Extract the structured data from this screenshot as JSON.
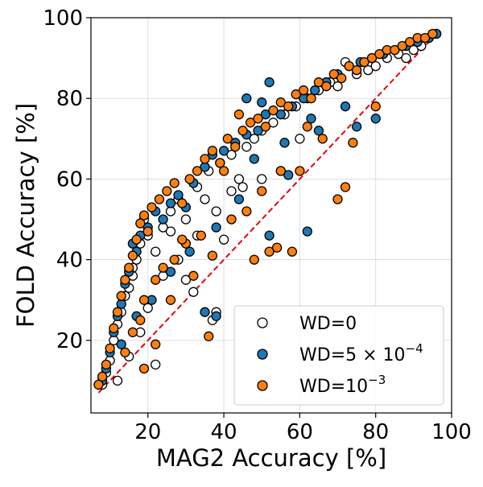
{
  "chart_data": {
    "type": "scatter",
    "xlabel": "MAG2 Accuracy [%]",
    "ylabel": "FOLD Accuracy [%]",
    "xlim": [
      5,
      100
    ],
    "ylim": [
      2,
      100
    ],
    "xticks": [
      20,
      40,
      60,
      80,
      100
    ],
    "yticks": [
      20,
      40,
      60,
      80,
      100
    ],
    "xtick_labels": [
      "20",
      "40",
      "60",
      "80",
      "100"
    ],
    "ytick_labels": [
      "20",
      "40",
      "60",
      "80",
      "100"
    ],
    "grid": true,
    "reference_line": {
      "style": "dashed",
      "color": "#e8000b",
      "x": [
        7,
        96
      ],
      "y": [
        7,
        96
      ]
    },
    "legend": {
      "position": "lower-right",
      "entries": [
        {
          "label": "WD=0",
          "marker_fill": "#ffffff"
        },
        {
          "label": "WD=5 × 10",
          "label_superscript": "−4",
          "marker_fill": "#1f77b4"
        },
        {
          "label": "WD=10",
          "label_superscript": "−3",
          "marker_fill": "#ff7f0e"
        }
      ]
    },
    "series": [
      {
        "name": "WD=0",
        "color": "#ffffff",
        "edge": "#000000",
        "points": [
          [
            8,
            9
          ],
          [
            9,
            12
          ],
          [
            10,
            15
          ],
          [
            11,
            20
          ],
          [
            12,
            24
          ],
          [
            13,
            27
          ],
          [
            14,
            31
          ],
          [
            15,
            33
          ],
          [
            16,
            36
          ],
          [
            17,
            40
          ],
          [
            18,
            44
          ],
          [
            19,
            50
          ],
          [
            20,
            46
          ],
          [
            22,
            42
          ],
          [
            24,
            48
          ],
          [
            26,
            52
          ],
          [
            28,
            55
          ],
          [
            30,
            50
          ],
          [
            33,
            58
          ],
          [
            36,
            62
          ],
          [
            39,
            64
          ],
          [
            42,
            66
          ],
          [
            44,
            60
          ],
          [
            46,
            68
          ],
          [
            48,
            70
          ],
          [
            50,
            72
          ],
          [
            53,
            74
          ],
          [
            56,
            76
          ],
          [
            59,
            78
          ],
          [
            62,
            80
          ],
          [
            65,
            82
          ],
          [
            68,
            84
          ],
          [
            70,
            83
          ],
          [
            72,
            89
          ],
          [
            75,
            86
          ],
          [
            78,
            87
          ],
          [
            80,
            88
          ],
          [
            83,
            90
          ],
          [
            86,
            91
          ],
          [
            88,
            90
          ],
          [
            90,
            92
          ],
          [
            92,
            93
          ],
          [
            94,
            95
          ],
          [
            96,
            96
          ],
          [
            55,
            62
          ],
          [
            45,
            58
          ],
          [
            38,
            52
          ],
          [
            33,
            46
          ],
          [
            28,
            40
          ],
          [
            24,
            36
          ],
          [
            20,
            28
          ],
          [
            18,
            22
          ],
          [
            15,
            16
          ],
          [
            12,
            10
          ],
          [
            40,
            45
          ],
          [
            32,
            32
          ],
          [
            37,
            25
          ],
          [
            38,
            27
          ],
          [
            22,
            14
          ],
          [
            16,
            38
          ],
          [
            30,
            35
          ],
          [
            60,
            70
          ],
          [
            50,
            60
          ],
          [
            42,
            57
          ],
          [
            35,
            55
          ],
          [
            26,
            47
          ]
        ]
      },
      {
        "name": "WD=5e-4",
        "color": "#1f77b4",
        "edge": "#000000",
        "points": [
          [
            8,
            10
          ],
          [
            9,
            13
          ],
          [
            10,
            17
          ],
          [
            11,
            22
          ],
          [
            12,
            26
          ],
          [
            13,
            29
          ],
          [
            14,
            34
          ],
          [
            15,
            37
          ],
          [
            16,
            44
          ],
          [
            17,
            42
          ],
          [
            18,
            46
          ],
          [
            20,
            48
          ],
          [
            22,
            52
          ],
          [
            24,
            50
          ],
          [
            26,
            54
          ],
          [
            28,
            56
          ],
          [
            30,
            53
          ],
          [
            32,
            59
          ],
          [
            35,
            63
          ],
          [
            37,
            66
          ],
          [
            40,
            67
          ],
          [
            43,
            69
          ],
          [
            46,
            71
          ],
          [
            49,
            72
          ],
          [
            51,
            76
          ],
          [
            52,
            84
          ],
          [
            55,
            76
          ],
          [
            58,
            78
          ],
          [
            61,
            80
          ],
          [
            64,
            82
          ],
          [
            67,
            84
          ],
          [
            70,
            86
          ],
          [
            73,
            88
          ],
          [
            76,
            89
          ],
          [
            79,
            90
          ],
          [
            82,
            91
          ],
          [
            85,
            92
          ],
          [
            88,
            93
          ],
          [
            91,
            94
          ],
          [
            94,
            95
          ],
          [
            96,
            96
          ],
          [
            62,
            47
          ],
          [
            52,
            46
          ],
          [
            63,
            75
          ],
          [
            75,
            73
          ],
          [
            80,
            75
          ],
          [
            57,
            61
          ],
          [
            48,
            65
          ],
          [
            44,
            55
          ],
          [
            38,
            48
          ],
          [
            31,
            42
          ],
          [
            26,
            37
          ],
          [
            21,
            30
          ],
          [
            17,
            26
          ],
          [
            13,
            19
          ],
          [
            35,
            27
          ],
          [
            38,
            26
          ],
          [
            56,
            69
          ],
          [
            65,
            72
          ],
          [
            72,
            78
          ],
          [
            46,
            80
          ],
          [
            50,
            79
          ]
        ]
      },
      {
        "name": "WD=1e-3",
        "color": "#ff7f0e",
        "edge": "#000000",
        "points": [
          [
            7,
            9
          ],
          [
            8,
            11
          ],
          [
            9,
            14
          ],
          [
            10,
            18
          ],
          [
            11,
            23
          ],
          [
            12,
            27
          ],
          [
            13,
            31
          ],
          [
            14,
            35
          ],
          [
            15,
            38
          ],
          [
            16,
            41
          ],
          [
            17,
            45
          ],
          [
            18,
            49
          ],
          [
            19,
            51
          ],
          [
            20,
            47
          ],
          [
            21,
            53
          ],
          [
            23,
            55
          ],
          [
            25,
            57
          ],
          [
            27,
            59
          ],
          [
            29,
            54
          ],
          [
            31,
            60
          ],
          [
            33,
            62
          ],
          [
            35,
            65
          ],
          [
            37,
            67
          ],
          [
            39,
            64
          ],
          [
            41,
            70
          ],
          [
            43,
            68
          ],
          [
            45,
            72
          ],
          [
            47,
            74
          ],
          [
            49,
            75
          ],
          [
            51,
            73
          ],
          [
            53,
            77
          ],
          [
            55,
            79
          ],
          [
            57,
            78
          ],
          [
            59,
            81
          ],
          [
            61,
            82
          ],
          [
            63,
            80
          ],
          [
            65,
            84
          ],
          [
            67,
            83
          ],
          [
            69,
            86
          ],
          [
            71,
            85
          ],
          [
            73,
            88
          ],
          [
            75,
            87
          ],
          [
            77,
            89
          ],
          [
            79,
            90
          ],
          [
            81,
            91
          ],
          [
            83,
            92
          ],
          [
            85,
            92
          ],
          [
            87,
            93
          ],
          [
            89,
            94
          ],
          [
            91,
            95
          ],
          [
            93,
            95
          ],
          [
            95,
            96
          ],
          [
            36,
            21
          ],
          [
            48,
            40
          ],
          [
            52,
            42
          ],
          [
            54,
            43
          ],
          [
            58,
            42
          ],
          [
            70,
            55
          ],
          [
            72,
            58
          ],
          [
            60,
            62
          ],
          [
            50,
            57
          ],
          [
            46,
            52
          ],
          [
            42,
            50
          ],
          [
            34,
            46
          ],
          [
            30,
            44
          ],
          [
            27,
            40
          ],
          [
            24,
            38
          ],
          [
            22,
            35
          ],
          [
            19,
            30
          ],
          [
            18,
            25
          ],
          [
            16,
            22
          ],
          [
            14,
            17
          ],
          [
            22,
            19
          ],
          [
            19,
            13
          ],
          [
            44,
            76
          ],
          [
            55,
            62
          ],
          [
            62,
            73
          ],
          [
            66,
            70
          ],
          [
            74,
            69
          ],
          [
            80,
            78
          ],
          [
            40,
            62
          ],
          [
            29,
            45
          ],
          [
            26,
            30
          ],
          [
            32,
            36
          ],
          [
            37,
            41
          ]
        ]
      }
    ]
  }
}
